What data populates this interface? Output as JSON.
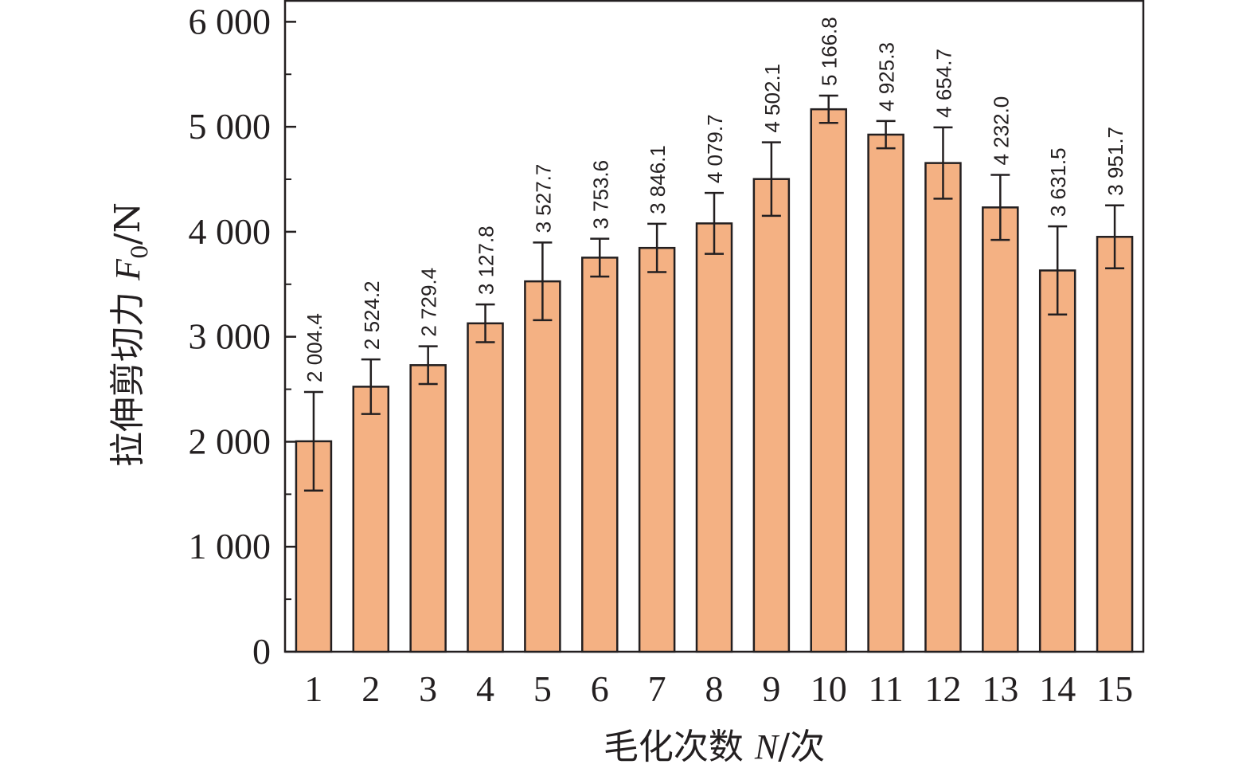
{
  "chart_data": {
    "type": "bar",
    "categories": [
      "1",
      "2",
      "3",
      "4",
      "5",
      "6",
      "7",
      "8",
      "9",
      "10",
      "11",
      "12",
      "13",
      "14",
      "15"
    ],
    "values": [
      2004.4,
      2524.2,
      2729.4,
      3127.8,
      3527.7,
      3753.6,
      3846.1,
      4079.7,
      4502.1,
      5166.8,
      4925.3,
      4654.7,
      4232.0,
      3631.5,
      3951.7
    ],
    "value_labels": [
      "2 004.4",
      "2 524.2",
      "2 729.4",
      "3 127.8",
      "3 527.7",
      "3 753.6",
      "3 846.1",
      "4 079.7",
      "4 502.1",
      "5 166.8",
      "4 925.3",
      "4 654.7",
      "4 232.0",
      "3 631.5",
      "3 951.7"
    ],
    "error": [
      470,
      260,
      180,
      180,
      370,
      180,
      230,
      290,
      350,
      130,
      130,
      340,
      310,
      420,
      300
    ],
    "ylim": [
      0,
      6200
    ],
    "yticks": [
      0,
      1000,
      2000,
      3000,
      4000,
      5000,
      6000
    ],
    "ytick_labels": [
      "0",
      "1 000",
      "2 000",
      "3 000",
      "4 000",
      "5 000",
      "6 000"
    ],
    "xlabel": {
      "prefix": "毛化次数 ",
      "var": "N",
      "suffix": "/次"
    },
    "ylabel": {
      "prefix": "拉伸剪切力 ",
      "var": "F",
      "sub": "0",
      "suffix": "/N"
    },
    "grid": false,
    "legend": "none",
    "colors": {
      "bar": "#f4b183",
      "stroke": "#231f20"
    }
  }
}
